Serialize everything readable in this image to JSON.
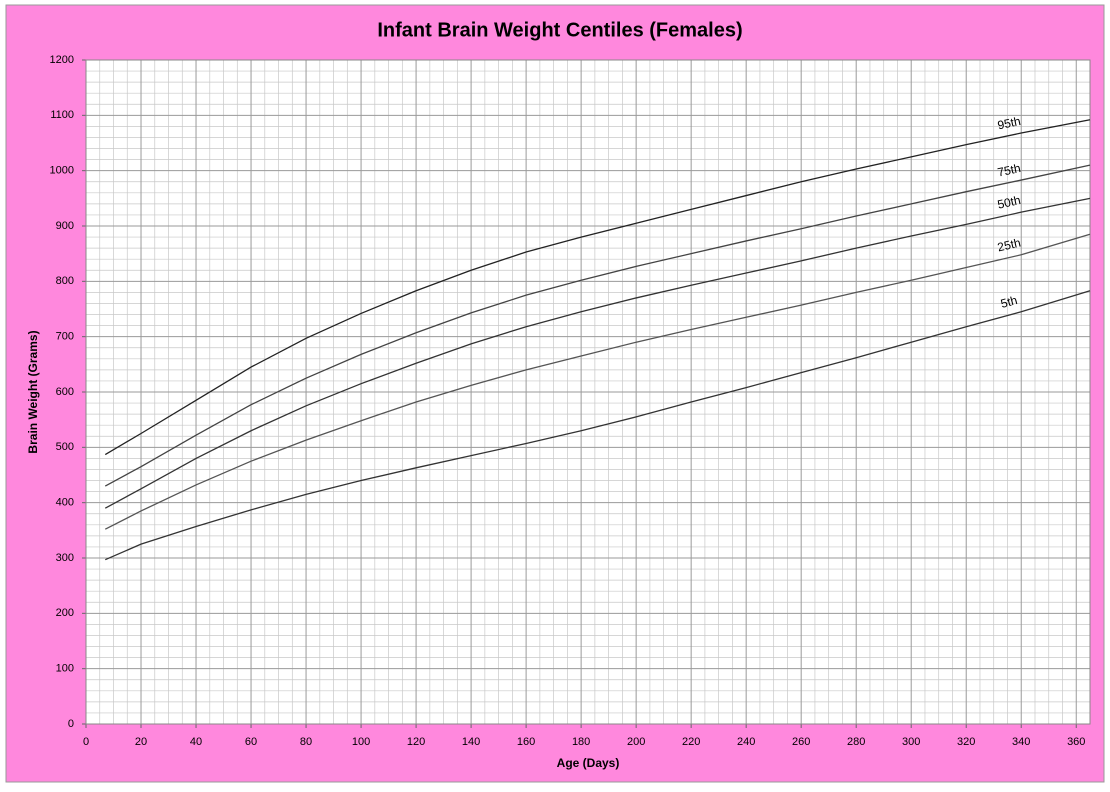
{
  "chart_data": {
    "type": "line",
    "title": "Infant Brain Weight Centiles (Females)",
    "x_label": "Age (Days)",
    "y_label": "Brain Weight (Grams)",
    "x": [
      7,
      20,
      40,
      60,
      80,
      100,
      120,
      140,
      160,
      180,
      200,
      220,
      240,
      260,
      280,
      300,
      320,
      340,
      365
    ],
    "series": [
      {
        "name": "95th",
        "color": "#222222",
        "values": [
          487,
          525,
          585,
          645,
          697,
          742,
          783,
          820,
          853,
          880,
          905,
          930,
          955,
          980,
          1003,
          1025,
          1047,
          1068,
          1092
        ]
      },
      {
        "name": "75th",
        "color": "#444444",
        "values": [
          430,
          465,
          522,
          577,
          625,
          668,
          707,
          743,
          775,
          802,
          827,
          850,
          873,
          895,
          918,
          940,
          962,
          983,
          1010
        ]
      },
      {
        "name": "50th",
        "color": "#333333",
        "values": [
          390,
          425,
          480,
          530,
          575,
          615,
          652,
          687,
          718,
          745,
          770,
          793,
          815,
          837,
          860,
          882,
          903,
          925,
          950
        ]
      },
      {
        "name": "25th",
        "color": "#555555",
        "values": [
          352,
          385,
          432,
          475,
          513,
          548,
          582,
          612,
          640,
          665,
          690,
          713,
          735,
          757,
          780,
          802,
          825,
          848,
          885
        ]
      },
      {
        "name": "5th",
        "color": "#333333",
        "values": [
          297,
          325,
          357,
          387,
          415,
          440,
          463,
          485,
          507,
          530,
          555,
          582,
          608,
          635,
          662,
          690,
          718,
          745,
          783
        ]
      }
    ],
    "xlim": [
      0,
      365
    ],
    "xticks": [
      0,
      20,
      40,
      60,
      80,
      100,
      120,
      140,
      160,
      180,
      200,
      220,
      240,
      260,
      280,
      300,
      320,
      340,
      360
    ],
    "ylim": [
      0,
      1200
    ],
    "yticks": [
      0,
      100,
      200,
      300,
      400,
      500,
      600,
      700,
      800,
      900,
      1000,
      1100,
      1200
    ],
    "grid": true,
    "background": "#ff88dd"
  }
}
